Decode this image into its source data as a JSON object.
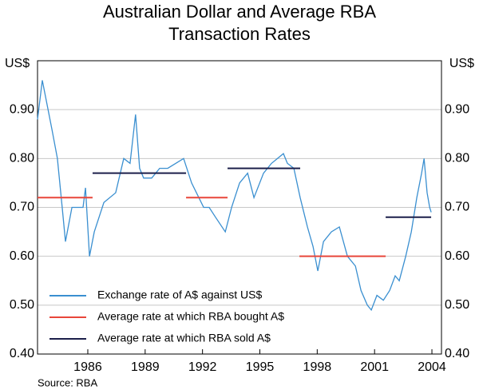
{
  "chart_data": {
    "type": "line",
    "title": [
      "Australian Dollar and Average RBA",
      "Transaction Rates"
    ],
    "y_unit_label": "US$",
    "y2_unit_label": "US$",
    "source": "Source: RBA",
    "xlim": [
      1983.37,
      2004.5
    ],
    "xticks": [
      1986,
      1989,
      1992,
      1995,
      1998,
      2001,
      2004
    ],
    "ylim": [
      0.4,
      1.0
    ],
    "yticks": [
      {
        "value": 0.4,
        "label": "0.40"
      },
      {
        "value": 0.5,
        "label": "0.50"
      },
      {
        "value": 0.6,
        "label": "0.60"
      },
      {
        "value": 0.7,
        "label": "0.70"
      },
      {
        "value": 0.8,
        "label": "0.80"
      },
      {
        "value": 0.9,
        "label": "0.90"
      }
    ],
    "y2lim": [
      0.4,
      1.0
    ],
    "y2ticks": [
      {
        "value": 0.4,
        "label": "0.40"
      },
      {
        "value": 0.5,
        "label": "0.50"
      },
      {
        "value": 0.6,
        "label": "0.60"
      },
      {
        "value": 0.7,
        "label": "0.70"
      },
      {
        "value": 0.8,
        "label": "0.80"
      },
      {
        "value": 0.9,
        "label": "0.90"
      }
    ],
    "grid": true,
    "legend": "lower left",
    "series": [
      {
        "name": "Exchange rate of A$ against US$",
        "color": "#3a8fd0",
        "x": [
          1983.37,
          1983.62,
          1984.12,
          1984.41,
          1984.66,
          1984.83,
          1985.17,
          1985.75,
          1985.88,
          1986.09,
          1986.34,
          1986.84,
          1987.46,
          1987.88,
          1988.21,
          1988.5,
          1988.71,
          1988.92,
          1989.34,
          1989.76,
          1990.18,
          1990.6,
          1991.01,
          1991.43,
          1992.06,
          1992.35,
          1992.68,
          1993.19,
          1993.52,
          1993.94,
          1994.36,
          1994.69,
          1995.19,
          1995.61,
          1996.23,
          1996.44,
          1996.78,
          1997.11,
          1997.49,
          1997.78,
          1998.03,
          1998.33,
          1998.74,
          1999.16,
          1999.58,
          2000.0,
          2000.29,
          2000.62,
          2000.83,
          2001.12,
          2001.46,
          2001.79,
          2002.08,
          2002.29,
          2002.63,
          2002.92,
          2003.21,
          2003.46,
          2003.59,
          2003.75,
          2003.88,
          2003.96
        ],
        "values": [
          0.88,
          0.96,
          0.86,
          0.8,
          0.7,
          0.63,
          0.7,
          0.7,
          0.74,
          0.6,
          0.65,
          0.71,
          0.73,
          0.8,
          0.79,
          0.89,
          0.78,
          0.76,
          0.76,
          0.78,
          0.78,
          0.79,
          0.8,
          0.75,
          0.7,
          0.7,
          0.68,
          0.65,
          0.7,
          0.75,
          0.77,
          0.72,
          0.77,
          0.79,
          0.81,
          0.79,
          0.78,
          0.72,
          0.66,
          0.62,
          0.57,
          0.63,
          0.65,
          0.66,
          0.6,
          0.58,
          0.53,
          0.5,
          0.49,
          0.52,
          0.51,
          0.53,
          0.56,
          0.55,
          0.6,
          0.65,
          0.72,
          0.77,
          0.8,
          0.73,
          0.7,
          0.69
        ]
      },
      {
        "name": "Average rate at which RBA bought A$",
        "color": "#e8463a",
        "segments": [
          {
            "start": 1983.37,
            "end": 1986.25,
            "value": 0.72
          },
          {
            "start": 1991.14,
            "end": 1993.31,
            "value": 0.72
          },
          {
            "start": 1997.07,
            "end": 2001.58,
            "value": 0.6
          }
        ]
      },
      {
        "name": "Average rate at which RBA sold A$",
        "color": "#1c1f4a",
        "segments": [
          {
            "start": 1986.25,
            "end": 1991.14,
            "value": 0.77
          },
          {
            "start": 1993.31,
            "end": 1997.11,
            "value": 0.78
          },
          {
            "start": 2001.58,
            "end": 2003.96,
            "value": 0.68
          }
        ]
      }
    ]
  }
}
